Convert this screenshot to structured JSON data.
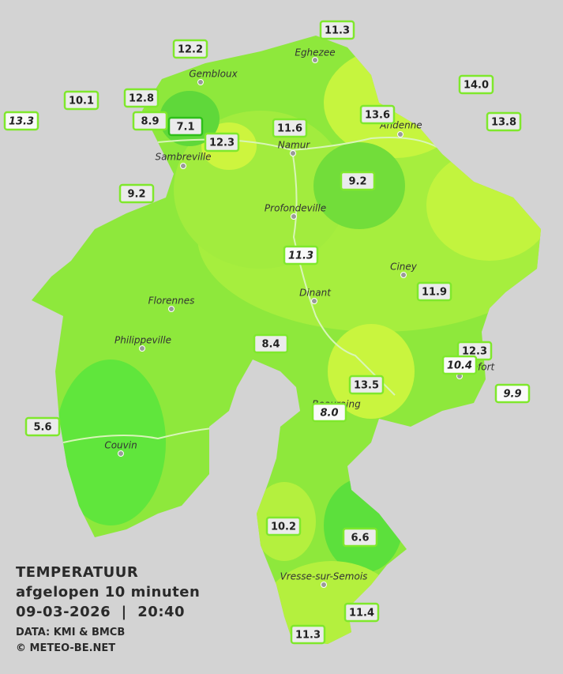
{
  "header": {
    "title": "TEMPERATUUR",
    "subtitle": "afgelopen 10 minuten",
    "timestamp": "09-03-2026  |  20:40",
    "source": "DATA: KMI & BMCB",
    "copyright": "© METEO-BE.NET"
  },
  "places": [
    "Eghezee",
    "Gembloux",
    "Andenne",
    "Namur",
    "Sambreville",
    "Profondeville",
    "Ciney",
    "Dinant",
    "Florennes",
    "Philippeville",
    "Rochefort",
    "Beauraing",
    "Couvin",
    "Vresse-sur-Semois"
  ],
  "stations": [
    "11.3",
    "12.2",
    "14.0",
    "10.1",
    "12.8",
    "13.3",
    "8.9",
    "7.1",
    "13.6",
    "13.8",
    "11.6",
    "12.3",
    "9.2",
    "9.2",
    "11.3",
    "11.9",
    "8.4",
    "12.3",
    "10.4",
    "13.5",
    "9.9",
    "8.0",
    "5.6",
    "10.2",
    "6.6",
    "11.4",
    "11.3"
  ]
}
